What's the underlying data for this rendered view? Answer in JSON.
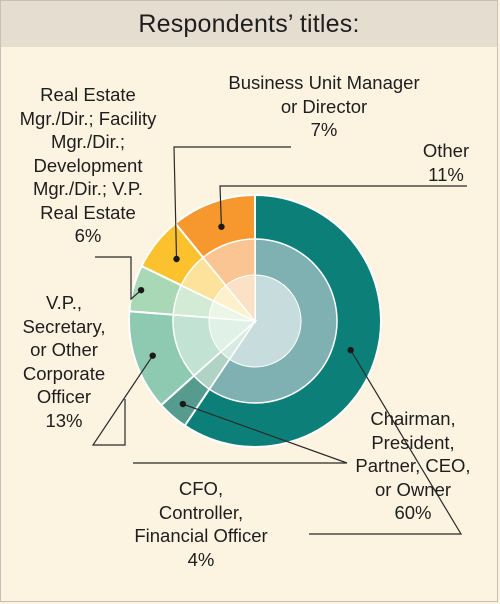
{
  "header": {
    "title": "Respondents’ titles:"
  },
  "chart_data": {
    "type": "pie",
    "title": "Respondents’ titles:",
    "unit": "%",
    "slices": [
      {
        "key": "chair",
        "lines": [
          "Chairman,",
          "President,",
          "Partner, CEO,",
          "or Owner"
        ],
        "pct_label": "60%",
        "value": 60,
        "color": "#0d7f79",
        "inner": "#7fb1b3",
        "core": "#c7dcdc"
      },
      {
        "key": "cfo",
        "lines": [
          "CFO,",
          "Controller,",
          "Financial Officer"
        ],
        "pct_label": "4%",
        "value": 4,
        "color": "#559c8e",
        "inner": "#b1d3c6",
        "core": "#d8ebe2"
      },
      {
        "key": "vp",
        "lines": [
          "V.P.,",
          "Secretary,",
          "or Other",
          "Corporate",
          "Officer"
        ],
        "pct_label": "13%",
        "value": 13,
        "color": "#8ecab2",
        "inner": "#c2e3d3",
        "core": "#e0f1e8"
      },
      {
        "key": "re",
        "lines": [
          "Real Estate",
          "Mgr./Dir.; Facility",
          "Mgr./Dir.;",
          "Development",
          "Mgr./Dir.; V.P.",
          "Real Estate"
        ],
        "pct_label": "6%",
        "value": 6,
        "color": "#a8d8b6",
        "inner": "#d3ebd4",
        "core": "#ebf5e8"
      },
      {
        "key": "bu",
        "lines": [
          "Business Unit Manager",
          "or Director"
        ],
        "pct_label": "7%",
        "value": 7,
        "color": "#fcc22e",
        "inner": "#fde29c",
        "core": "#fdf0cb"
      },
      {
        "key": "other",
        "lines": [
          "Other"
        ],
        "pct_label": "11%",
        "value": 11,
        "color": "#f6982d",
        "inner": "#fbc593",
        "core": "#fbe1c6"
      }
    ]
  }
}
